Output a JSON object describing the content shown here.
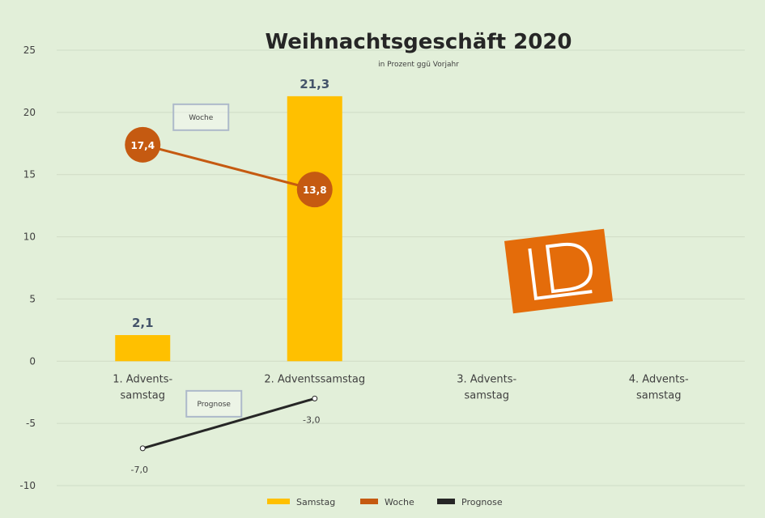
{
  "chart_data": {
    "type": "bar",
    "title": "Weihnachtsgeschäft 2020",
    "subtitle": "in Prozent ggü Vorjahr",
    "categories": [
      [
        "1. Advents-",
        "samstag"
      ],
      [
        "2. Adventssamstag"
      ],
      [
        "3. Advents-",
        "samstag"
      ],
      [
        "4. Advents-",
        "samstag"
      ]
    ],
    "ylim": [
      -10,
      25
    ],
    "yticks": [
      -10,
      -5,
      0,
      5,
      10,
      15,
      20,
      25
    ],
    "grid": true,
    "legend_position": "bottom",
    "series": [
      {
        "name": "Samstag",
        "type": "bar",
        "color": "#ffc000",
        "values": [
          2.1,
          21.3,
          null,
          null
        ],
        "labels": [
          "2,1",
          "21,3"
        ]
      },
      {
        "name": "Woche",
        "type": "line",
        "color": "#c55a11",
        "values": [
          17.4,
          13.8,
          null,
          null
        ],
        "labels": [
          "17,4",
          "13,8"
        ]
      },
      {
        "name": "Prognose",
        "type": "line",
        "color": "#262626",
        "values": [
          -7.0,
          -3.0,
          null,
          null
        ],
        "labels": [
          "-7,0",
          "-3,0"
        ]
      }
    ],
    "callouts": [
      {
        "series": "Woche",
        "text": "Woche"
      },
      {
        "series": "Prognose",
        "text": "Prognose"
      }
    ]
  },
  "logo": {
    "name": "ld-logo-icon",
    "color": "#e46c0a"
  }
}
